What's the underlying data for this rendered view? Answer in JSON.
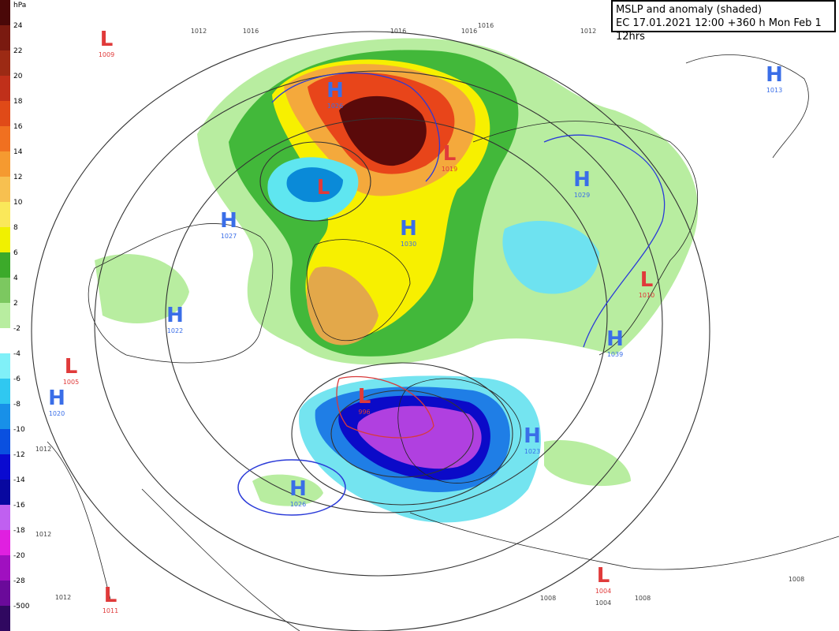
{
  "header": {
    "title": "MSLP and anomaly (shaded)",
    "subtitle": "EC 17.01.2021 12:00 +360 h Mon Feb 1 12hrs"
  },
  "colorbar": {
    "unit": "hPa",
    "labels": [
      "24",
      "22",
      "20",
      "18",
      "16",
      "14",
      "12",
      "10",
      "8",
      "6",
      "4",
      "2",
      "-2",
      "-4",
      "-6",
      "-8",
      "-10",
      "-12",
      "-14",
      "-16",
      "-18",
      "-20",
      "-28",
      "-500"
    ]
  },
  "centers": [
    {
      "type": "L",
      "value": 1009
    },
    {
      "type": "H",
      "value": 1026
    },
    {
      "type": "L"
    },
    {
      "type": "L",
      "value": 1019
    },
    {
      "type": "H",
      "value": 1029
    },
    {
      "type": "H",
      "value": 1013
    },
    {
      "type": "H",
      "value": 1027
    },
    {
      "type": "H",
      "value": 1030
    },
    {
      "type": "L",
      "value": 1010
    },
    {
      "type": "H",
      "value": 1022
    },
    {
      "type": "H",
      "value": 1039
    },
    {
      "type": "L",
      "value": 1005
    },
    {
      "type": "H",
      "value": 1020
    },
    {
      "type": "L",
      "value": 996
    },
    {
      "type": "H",
      "value": 1023
    },
    {
      "type": "H",
      "value": 1026
    },
    {
      "type": "L",
      "value": 1004
    },
    {
      "type": "L",
      "value": 1011
    }
  ],
  "isobar_labels": [
    1012,
    1016,
    1016,
    1016,
    1016,
    1012,
    1012,
    1012,
    1012,
    1008,
    1004,
    1008,
    1008
  ]
}
